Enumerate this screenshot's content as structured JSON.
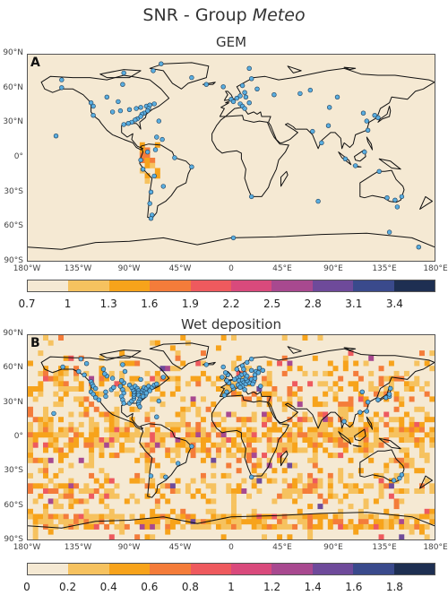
{
  "title": {
    "prefix": "SNR - Group ",
    "italic": "Meteo"
  },
  "panels": [
    {
      "letter": "A",
      "title": "GEM"
    },
    {
      "letter": "B",
      "title": "Wet deposition"
    }
  ],
  "axes": {
    "lat_ticks": [
      "90°N",
      "60°N",
      "30°N",
      "0°",
      "30°S",
      "60°S",
      "90°S"
    ],
    "lon_ticks": [
      "180°W",
      "135°W",
      "90°W",
      "45°W",
      "0",
      "45°E",
      "90°E",
      "135°E",
      "180°E"
    ]
  },
  "colorbars": [
    {
      "labels": [
        "0.7",
        "1",
        "1.3",
        "1.6",
        "1.9",
        "2.2",
        "2.5",
        "2.8",
        "3.1",
        "3.4"
      ]
    },
    {
      "labels": [
        "0",
        "0.2",
        "0.4",
        "0.6",
        "0.8",
        "1",
        "1.2",
        "1.4",
        "1.6",
        "1.8"
      ]
    }
  ],
  "colors": {
    "bins": [
      "#f5e9d3",
      "#f6c25f",
      "#f7a31b",
      "#f47c3a",
      "#ee5a5e",
      "#d94a7c",
      "#a8498f",
      "#6e4a9a",
      "#3a4a8c",
      "#1e2f52"
    ],
    "station": "#5aaee0",
    "land_background": "#f5e9d3"
  },
  "stations_A": [
    [
      61.2,
      -150
    ],
    [
      68,
      -150
    ],
    [
      48,
      -124
    ],
    [
      45,
      -122
    ],
    [
      37,
      -122
    ],
    [
      40,
      -105
    ],
    [
      41,
      -98
    ],
    [
      42,
      -90
    ],
    [
      43,
      -84
    ],
    [
      44,
      -80
    ],
    [
      45,
      -75
    ],
    [
      46,
      -72
    ],
    [
      43,
      -73
    ],
    [
      41,
      -74
    ],
    [
      39,
      -77
    ],
    [
      38,
      -79
    ],
    [
      36,
      -80
    ],
    [
      34,
      -83
    ],
    [
      33,
      -85
    ],
    [
      31,
      -88
    ],
    [
      30,
      -91
    ],
    [
      29,
      -95
    ],
    [
      47,
      -68
    ],
    [
      49,
      -100
    ],
    [
      53,
      -110
    ],
    [
      64,
      -96
    ],
    [
      74,
      -95
    ],
    [
      82,
      -62
    ],
    [
      76,
      -69
    ],
    [
      70,
      -35
    ],
    [
      62,
      -7
    ],
    [
      64,
      -22
    ],
    [
      78,
      16
    ],
    [
      69,
      18
    ],
    [
      63,
      10
    ],
    [
      60,
      23
    ],
    [
      57,
      12
    ],
    [
      54,
      8
    ],
    [
      52,
      5
    ],
    [
      51,
      0
    ],
    [
      49,
      2
    ],
    [
      47,
      8
    ],
    [
      45,
      10
    ],
    [
      43,
      12
    ],
    [
      48,
      16
    ],
    [
      53,
      13
    ],
    [
      55,
      38
    ],
    [
      56,
      61
    ],
    [
      59,
      70
    ],
    [
      53,
      94
    ],
    [
      44,
      87
    ],
    [
      39,
      117
    ],
    [
      32,
      120
    ],
    [
      24,
      121
    ],
    [
      35,
      130
    ],
    [
      37,
      127
    ],
    [
      28,
      86
    ],
    [
      23,
      72
    ],
    [
      13,
      80
    ],
    [
      5,
      118
    ],
    [
      -1,
      101
    ],
    [
      -7,
      110
    ],
    [
      -12,
      131
    ],
    [
      -34,
      151
    ],
    [
      -35,
      138
    ],
    [
      -37,
      145
    ],
    [
      -43,
      147
    ],
    [
      -34,
      18
    ],
    [
      -38,
      77
    ],
    [
      -70,
      2
    ],
    [
      -78,
      166
    ],
    [
      -65,
      140
    ],
    [
      16,
      -61
    ],
    [
      18,
      -66
    ],
    [
      -50,
      -70
    ],
    [
      -53,
      -71
    ],
    [
      -10,
      -78
    ],
    [
      -2,
      -80
    ],
    [
      5,
      -74
    ],
    [
      7,
      -67
    ],
    [
      -16,
      -68
    ],
    [
      -25,
      -60
    ],
    [
      -30,
      -71
    ],
    [
      -40,
      -72
    ],
    [
      -8,
      -35
    ],
    [
      0,
      -50
    ],
    [
      19,
      -155
    ],
    [
      32,
      -64
    ]
  ],
  "stations_B": [
    [
      62,
      -149
    ],
    [
      58,
      -135
    ],
    [
      55,
      -130
    ],
    [
      49,
      -124
    ],
    [
      47,
      -123
    ],
    [
      45,
      -122
    ],
    [
      43,
      -120
    ],
    [
      40,
      -124
    ],
    [
      38,
      -122
    ],
    [
      35,
      -120
    ],
    [
      33,
      -117
    ],
    [
      36,
      -111
    ],
    [
      40,
      -111
    ],
    [
      42,
      -106
    ],
    [
      44,
      -104
    ],
    [
      45,
      -98
    ],
    [
      42,
      -96
    ],
    [
      39,
      -95
    ],
    [
      36,
      -97
    ],
    [
      33,
      -96
    ],
    [
      30,
      -95
    ],
    [
      30,
      -90
    ],
    [
      32,
      -88
    ],
    [
      34,
      -86
    ],
    [
      36,
      -86
    ],
    [
      38,
      -86
    ],
    [
      40,
      -86
    ],
    [
      42,
      -87
    ],
    [
      44,
      -88
    ],
    [
      46,
      -90
    ],
    [
      45,
      -85
    ],
    [
      43,
      -83
    ],
    [
      41,
      -82
    ],
    [
      39,
      -82
    ],
    [
      37,
      -82
    ],
    [
      35,
      -80
    ],
    [
      33,
      -81
    ],
    [
      31,
      -82
    ],
    [
      29,
      -82
    ],
    [
      27,
      -81
    ],
    [
      40,
      -79
    ],
    [
      42,
      -78
    ],
    [
      44,
      -77
    ],
    [
      41,
      -76
    ],
    [
      43,
      -75
    ],
    [
      45,
      -73
    ],
    [
      42,
      -72
    ],
    [
      44,
      -70
    ],
    [
      46,
      -68
    ],
    [
      38,
      -77
    ],
    [
      37,
      -76
    ],
    [
      36,
      -78
    ],
    [
      39,
      -75
    ],
    [
      41,
      -72
    ],
    [
      48,
      -95
    ],
    [
      50,
      -97
    ],
    [
      52,
      -105
    ],
    [
      54,
      -110
    ],
    [
      56,
      -112
    ],
    [
      60,
      -113
    ],
    [
      65,
      -128
    ],
    [
      69,
      -133
    ],
    [
      64,
      -96
    ],
    [
      58,
      -94
    ],
    [
      51,
      -80
    ],
    [
      47,
      -66
    ],
    [
      53,
      -60
    ],
    [
      62,
      -7
    ],
    [
      64,
      -22
    ],
    [
      69,
      18
    ],
    [
      66,
      14
    ],
    [
      63,
      10
    ],
    [
      60,
      5
    ],
    [
      60,
      11
    ],
    [
      59,
      18
    ],
    [
      61,
      25
    ],
    [
      58,
      22
    ],
    [
      56,
      12
    ],
    [
      55,
      9
    ],
    [
      53,
      7
    ],
    [
      52,
      5
    ],
    [
      51,
      3
    ],
    [
      50,
      7
    ],
    [
      50,
      10
    ],
    [
      48,
      11
    ],
    [
      47,
      8
    ],
    [
      46,
      6
    ],
    [
      45,
      10
    ],
    [
      47,
      13
    ],
    [
      48,
      16
    ],
    [
      50,
      14
    ],
    [
      52,
      13
    ],
    [
      54,
      14
    ],
    [
      51,
      18
    ],
    [
      49,
      20
    ],
    [
      52,
      21
    ],
    [
      47,
      19
    ],
    [
      44,
      8
    ],
    [
      42,
      12
    ],
    [
      40,
      -4
    ],
    [
      37,
      -6
    ],
    [
      43,
      2
    ],
    [
      45,
      1
    ],
    [
      48,
      -2
    ],
    [
      50,
      -4
    ],
    [
      55,
      -3
    ],
    [
      57,
      -5
    ],
    [
      53,
      -8
    ],
    [
      55,
      21
    ],
    [
      57,
      24
    ],
    [
      59,
      28
    ],
    [
      45,
      26
    ],
    [
      40,
      116
    ],
    [
      31,
      121
    ],
    [
      35,
      137
    ],
    [
      36,
      140
    ],
    [
      38,
      140
    ],
    [
      43,
      141
    ],
    [
      33,
      130
    ],
    [
      22,
      114
    ],
    [
      23,
      120
    ],
    [
      14,
      100
    ],
    [
      -36,
      149
    ],
    [
      -38,
      144
    ],
    [
      -33,
      151
    ],
    [
      -35,
      -58
    ],
    [
      -23,
      -47
    ],
    [
      -8,
      -35
    ],
    [
      -34,
      -71
    ],
    [
      -35,
      18
    ],
    [
      21,
      -157
    ],
    [
      18,
      -66
    ],
    [
      32,
      -64
    ]
  ]
}
